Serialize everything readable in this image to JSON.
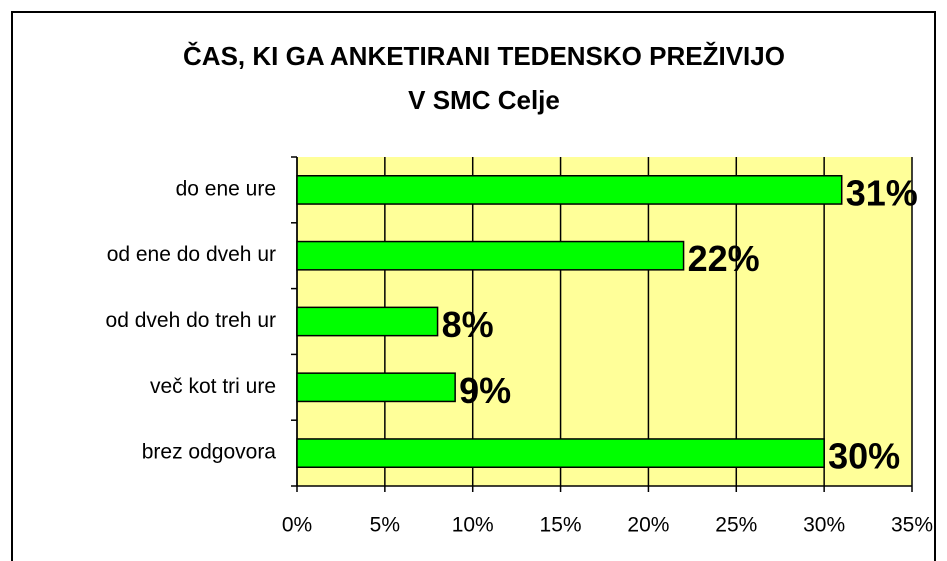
{
  "chart_data": {
    "type": "bar",
    "orientation": "horizontal",
    "title": [
      "ČAS, KI GA ANKETIRANI TEDENSKO PREŽIVIJO",
      "V SMC Celje"
    ],
    "categories": [
      "do ene ure",
      "od ene do dveh ur",
      "od dveh do treh ur",
      "več kot tri ure",
      "brez odgovora"
    ],
    "values": [
      31,
      22,
      8,
      9,
      30
    ],
    "value_labels": [
      "31%",
      "22%",
      "8%",
      "9%",
      "30%"
    ],
    "color": "#00ff00",
    "plot_background": "#ffff99",
    "xlim": [
      0,
      35
    ],
    "xticks": [
      {
        "value": 0,
        "label": "0%"
      },
      {
        "value": 5,
        "label": "5%"
      },
      {
        "value": 10,
        "label": "10%"
      },
      {
        "value": 15,
        "label": "15%"
      },
      {
        "value": 20,
        "label": "20%"
      },
      {
        "value": 25,
        "label": "25%"
      },
      {
        "value": 30,
        "label": "30%"
      },
      {
        "value": 35,
        "label": "35%"
      }
    ],
    "grid": true
  }
}
